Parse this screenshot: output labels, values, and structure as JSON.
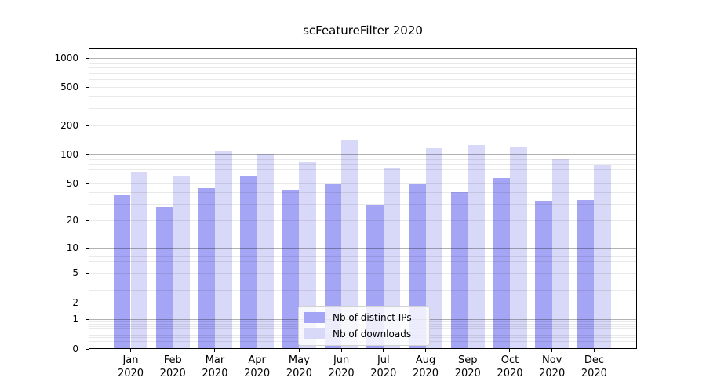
{
  "title": "scFeatureFilter 2020",
  "chart_data": {
    "type": "bar",
    "title": "scFeatureFilter 2020",
    "categories": [
      "Jan",
      "Feb",
      "Mar",
      "Apr",
      "May",
      "Jun",
      "Jul",
      "Aug",
      "Sep",
      "Oct",
      "Nov",
      "Dec"
    ],
    "x_tick_second_line": "2020",
    "series": [
      {
        "name": "Nb of distinct IPs",
        "color": "#a5a5f5",
        "values": [
          37,
          28,
          44,
          60,
          43,
          49,
          29,
          49,
          40,
          57,
          32,
          33
        ]
      },
      {
        "name": "Nb of downloads",
        "color": "#d8d8f8",
        "values": [
          66,
          60,
          108,
          100,
          85,
          140,
          73,
          117,
          125,
          120,
          90,
          78
        ]
      }
    ],
    "y_axis": {
      "scale": "log1p",
      "tick_labels": [
        1000,
        500,
        200,
        100,
        50,
        20,
        10,
        5,
        2,
        1,
        0
      ],
      "major_gridlines": [
        1,
        10,
        100,
        1000
      ],
      "ylim": [
        0,
        1270
      ]
    },
    "legend": {
      "position": "lower center"
    },
    "grid": true
  },
  "colors": {
    "minor_grid": "#e9e9e9",
    "major_grid": "#b3b3b3",
    "spine": "#000000",
    "legend_border": "#d2d2d2"
  }
}
